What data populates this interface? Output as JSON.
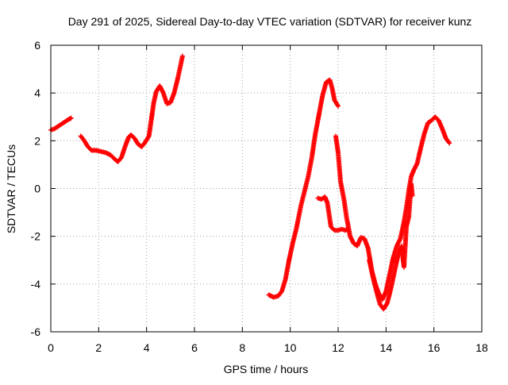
{
  "chart_data": {
    "type": "scatter",
    "title": "Day 291 of 2025, Sidereal Day-to-day VTEC variation (SDTVAR) for receiver kunz",
    "xlabel": "GPS time / hours",
    "ylabel": "SDTVAR / TECUs",
    "xlim": [
      0,
      18
    ],
    "ylim": [
      -6,
      6
    ],
    "x_ticks": [
      0,
      2,
      4,
      6,
      8,
      10,
      12,
      14,
      16,
      18
    ],
    "y_ticks": [
      -6,
      -4,
      -2,
      0,
      2,
      4,
      6
    ],
    "x_tick_labels": [
      "0",
      "2",
      "4",
      "6",
      "8",
      "10",
      "12",
      "14",
      "16",
      "18"
    ],
    "y_tick_labels": [
      "-6",
      "-4",
      "-2",
      "0",
      "2",
      "4",
      "6"
    ],
    "grid": true,
    "legend": "none",
    "marker": "plus",
    "series": [
      {
        "name": "SDTVAR",
        "color": "#ff0000",
        "segments": [
          [
            [
              0.0,
              2.45
            ],
            [
              0.15,
              2.5
            ],
            [
              0.3,
              2.6
            ],
            [
              0.45,
              2.7
            ],
            [
              0.6,
              2.8
            ],
            [
              0.75,
              2.9
            ],
            [
              0.85,
              2.95
            ]
          ],
          [
            [
              1.25,
              2.2
            ],
            [
              1.4,
              2.0
            ],
            [
              1.55,
              1.75
            ],
            [
              1.7,
              1.6
            ],
            [
              1.9,
              1.6
            ],
            [
              2.1,
              1.55
            ],
            [
              2.3,
              1.5
            ],
            [
              2.5,
              1.4
            ],
            [
              2.65,
              1.25
            ],
            [
              2.8,
              1.12
            ],
            [
              2.95,
              1.3
            ],
            [
              3.1,
              1.75
            ],
            [
              3.25,
              2.15
            ],
            [
              3.35,
              2.25
            ],
            [
              3.5,
              2.1
            ],
            [
              3.65,
              1.85
            ],
            [
              3.8,
              1.75
            ],
            [
              3.95,
              1.95
            ],
            [
              4.1,
              2.2
            ],
            [
              4.2,
              2.9
            ],
            [
              4.3,
              3.6
            ],
            [
              4.4,
              4.05
            ],
            [
              4.55,
              4.3
            ],
            [
              4.7,
              4.0
            ],
            [
              4.85,
              3.55
            ],
            [
              5.0,
              3.6
            ],
            [
              5.15,
              4.0
            ],
            [
              5.3,
              4.6
            ],
            [
              5.45,
              5.3
            ],
            [
              5.5,
              5.55
            ]
          ],
          [
            [
              9.1,
              -4.45
            ],
            [
              9.3,
              -4.55
            ],
            [
              9.5,
              -4.5
            ],
            [
              9.65,
              -4.3
            ],
            [
              9.8,
              -3.8
            ],
            [
              9.95,
              -3.0
            ],
            [
              10.1,
              -2.3
            ],
            [
              10.25,
              -1.7
            ],
            [
              10.45,
              -0.7
            ],
            [
              10.6,
              -0.1
            ],
            [
              10.75,
              0.5
            ],
            [
              10.9,
              1.3
            ],
            [
              11.05,
              2.3
            ],
            [
              11.2,
              3.1
            ],
            [
              11.35,
              3.9
            ],
            [
              11.5,
              4.45
            ],
            [
              11.65,
              4.55
            ],
            [
              11.75,
              4.2
            ],
            [
              11.85,
              3.7
            ],
            [
              12.0,
              3.45
            ]
          ],
          [
            [
              11.15,
              -0.4
            ],
            [
              11.3,
              -0.45
            ],
            [
              11.45,
              -0.35
            ],
            [
              11.55,
              -0.6
            ],
            [
              11.7,
              -1.6
            ],
            [
              11.85,
              -1.75
            ],
            [
              12.0,
              -1.75
            ],
            [
              12.15,
              -1.7
            ],
            [
              12.3,
              -1.75
            ],
            [
              12.4,
              -1.7
            ]
          ],
          [
            [
              11.9,
              2.2
            ],
            [
              12.0,
              1.5
            ],
            [
              12.1,
              0.3
            ],
            [
              12.25,
              -0.5
            ],
            [
              12.35,
              -1.2
            ],
            [
              12.5,
              -2.0
            ],
            [
              12.65,
              -2.3
            ],
            [
              12.8,
              -2.4
            ],
            [
              12.95,
              -2.05
            ],
            [
              13.1,
              -2.1
            ],
            [
              13.25,
              -2.5
            ],
            [
              13.4,
              -3.4
            ],
            [
              13.55,
              -4.0
            ],
            [
              13.7,
              -4.4
            ],
            [
              13.85,
              -4.65
            ],
            [
              14.0,
              -4.3
            ],
            [
              14.15,
              -3.6
            ],
            [
              14.3,
              -2.9
            ],
            [
              14.45,
              -2.4
            ],
            [
              14.6,
              -2.1
            ],
            [
              14.75,
              -1.4
            ],
            [
              14.85,
              -0.8
            ],
            [
              14.95,
              -0.1
            ],
            [
              15.05,
              0.5
            ],
            [
              15.15,
              0.75
            ],
            [
              15.3,
              1.05
            ],
            [
              15.45,
              1.7
            ],
            [
              15.6,
              2.3
            ],
            [
              15.75,
              2.75
            ],
            [
              15.9,
              2.85
            ],
            [
              16.05,
              3.0
            ],
            [
              16.2,
              2.85
            ],
            [
              16.35,
              2.5
            ],
            [
              16.5,
              2.1
            ],
            [
              16.65,
              1.9
            ]
          ],
          [
            [
              13.3,
              -3.0
            ],
            [
              13.45,
              -3.7
            ],
            [
              13.6,
              -4.3
            ],
            [
              13.75,
              -4.85
            ],
            [
              13.9,
              -5.05
            ],
            [
              14.05,
              -4.8
            ],
            [
              14.2,
              -4.2
            ],
            [
              14.35,
              -3.5
            ],
            [
              14.5,
              -2.8
            ],
            [
              14.65,
              -2.4
            ],
            [
              14.75,
              -3.3
            ],
            [
              14.85,
              -1.6
            ],
            [
              14.95,
              -1.2
            ],
            [
              15.0,
              -0.5
            ],
            [
              15.05,
              0.2
            ],
            [
              15.1,
              -0.3
            ]
          ]
        ]
      }
    ]
  }
}
